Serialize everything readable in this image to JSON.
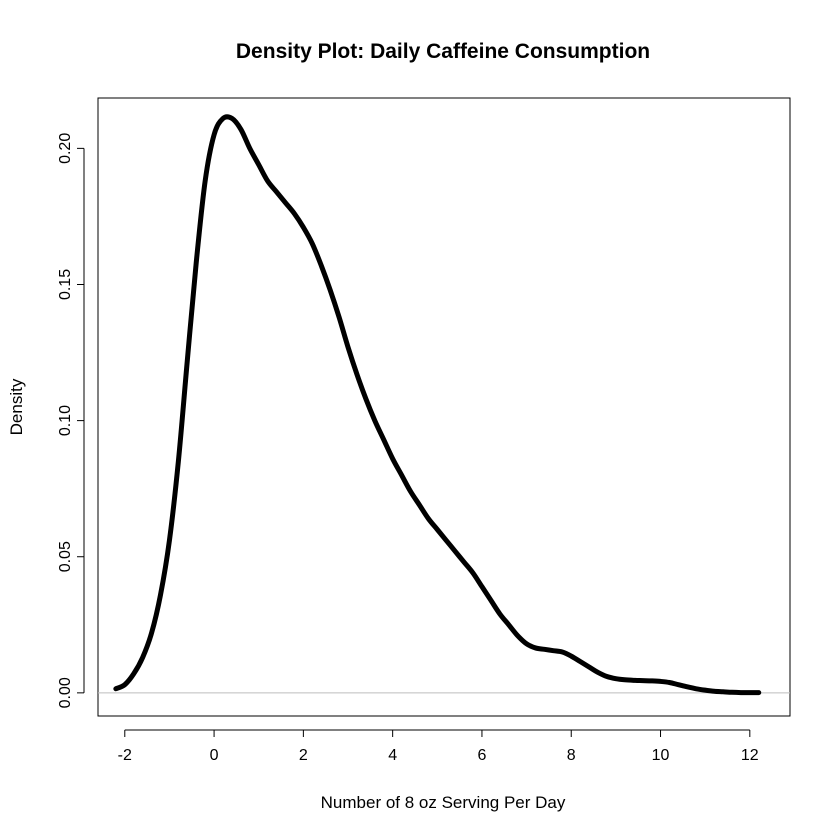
{
  "chart_data": {
    "type": "line",
    "title": "Density Plot: Daily Caffeine Consumption",
    "xlabel": "Number of 8 oz Serving Per Day",
    "ylabel": "Density",
    "xlim": [
      -2.6,
      12.9
    ],
    "ylim": [
      -0.0085,
      0.2185
    ],
    "x_ticks": [
      -2,
      0,
      2,
      4,
      6,
      8,
      10,
      12
    ],
    "x_tick_labels": [
      "-2",
      "0",
      "2",
      "4",
      "6",
      "8",
      "10",
      "12"
    ],
    "y_ticks": [
      0.0,
      0.05,
      0.1,
      0.15,
      0.2
    ],
    "y_tick_labels": [
      "0.00",
      "0.05",
      "0.10",
      "0.15",
      "0.20"
    ],
    "baseline_y": 0,
    "series": [
      {
        "name": "density",
        "x": [
          -2.2,
          -2.0,
          -1.8,
          -1.6,
          -1.4,
          -1.2,
          -1.0,
          -0.8,
          -0.6,
          -0.4,
          -0.2,
          0.0,
          0.2,
          0.4,
          0.6,
          0.8,
          1.0,
          1.2,
          1.4,
          1.6,
          1.8,
          2.0,
          2.2,
          2.4,
          2.6,
          2.8,
          3.0,
          3.2,
          3.4,
          3.6,
          3.8,
          4.0,
          4.2,
          4.4,
          4.6,
          4.8,
          5.0,
          5.2,
          5.4,
          5.6,
          5.8,
          6.0,
          6.2,
          6.4,
          6.6,
          6.8,
          7.0,
          7.2,
          7.4,
          7.6,
          7.8,
          8.0,
          8.2,
          8.4,
          8.6,
          8.8,
          9.0,
          9.2,
          9.4,
          9.6,
          9.8,
          10.0,
          10.2,
          10.4,
          10.6,
          10.8,
          11.0,
          11.2,
          11.4,
          11.6,
          11.8,
          12.0,
          12.2
        ],
        "y": [
          0.0015,
          0.003,
          0.007,
          0.013,
          0.022,
          0.036,
          0.056,
          0.085,
          0.122,
          0.158,
          0.188,
          0.205,
          0.211,
          0.211,
          0.207,
          0.2,
          0.194,
          0.188,
          0.184,
          0.18,
          0.176,
          0.171,
          0.165,
          0.157,
          0.148,
          0.138,
          0.127,
          0.117,
          0.108,
          0.1,
          0.093,
          0.086,
          0.08,
          0.074,
          0.069,
          0.064,
          0.06,
          0.056,
          0.052,
          0.048,
          0.044,
          0.039,
          0.034,
          0.029,
          0.025,
          0.021,
          0.018,
          0.0165,
          0.016,
          0.0155,
          0.015,
          0.0135,
          0.0115,
          0.0095,
          0.0075,
          0.006,
          0.0052,
          0.0048,
          0.0046,
          0.0045,
          0.0044,
          0.0042,
          0.0038,
          0.003,
          0.0022,
          0.0015,
          0.001,
          0.0006,
          0.0004,
          0.0002,
          0.0001,
          0.0001,
          0.0001
        ]
      }
    ],
    "colors": {
      "line": "#000000",
      "baseline": "#bebebe",
      "frame": "#000000"
    }
  }
}
